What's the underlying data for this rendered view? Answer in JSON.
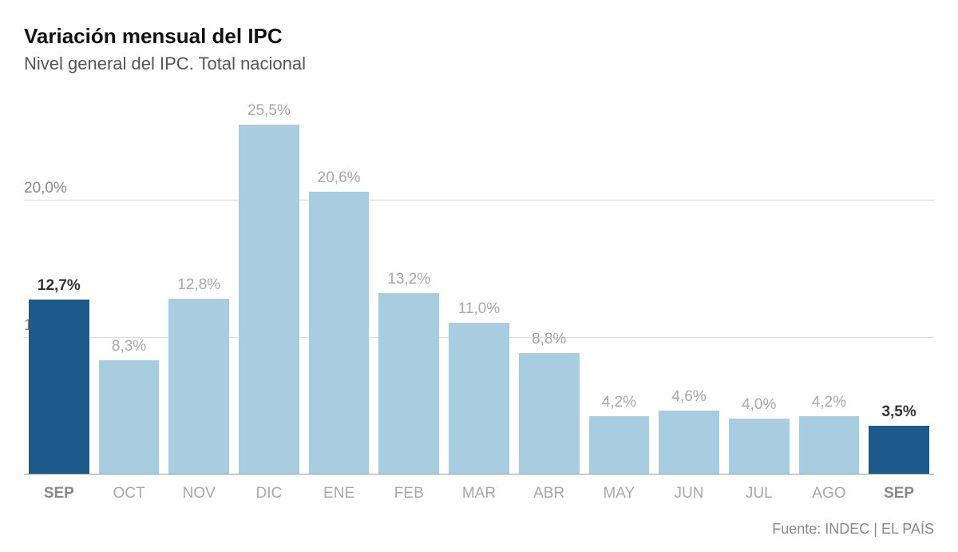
{
  "title": "Variación mensual del IPC",
  "subtitle": "Nivel general del IPC. Total nacional",
  "source": "Fuente: INDEC | EL PAÍS",
  "chart": {
    "type": "bar",
    "background_color": "#ffffff",
    "grid_color": "#dddddd",
    "baseline_color": "#999999",
    "title_fontsize": 26,
    "subtitle_fontsize": 22,
    "label_fontsize": 19,
    "ymax": 28,
    "yticks": [
      {
        "value": 10.0,
        "label": "10,0"
      },
      {
        "value": 20.0,
        "label": "20,0%"
      }
    ],
    "bar_width": 0.86,
    "colors": {
      "highlight": "#1d5a8a",
      "normal": "#a9cde0",
      "value_text_highlight": "#333333",
      "value_text_normal": "#a8a8a8",
      "xlabel_highlight": "#888888",
      "xlabel_highlight_weight": 700,
      "xlabel_normal": "#a8a8a8",
      "xlabel_normal_weight": 400
    },
    "data": [
      {
        "month": "SEP",
        "value": 12.7,
        "label": "12,7%",
        "highlight": true
      },
      {
        "month": "OCT",
        "value": 8.3,
        "label": "8,3%",
        "highlight": false
      },
      {
        "month": "NOV",
        "value": 12.8,
        "label": "12,8%",
        "highlight": false
      },
      {
        "month": "DIC",
        "value": 25.5,
        "label": "25,5%",
        "highlight": false
      },
      {
        "month": "ENE",
        "value": 20.6,
        "label": "20,6%",
        "highlight": false
      },
      {
        "month": "FEB",
        "value": 13.2,
        "label": "13,2%",
        "highlight": false
      },
      {
        "month": "MAR",
        "value": 11.0,
        "label": "11,0%",
        "highlight": false
      },
      {
        "month": "ABR",
        "value": 8.8,
        "label": "8,8%",
        "highlight": false
      },
      {
        "month": "MAY",
        "value": 4.2,
        "label": "4,2%",
        "highlight": false
      },
      {
        "month": "JUN",
        "value": 4.6,
        "label": "4,6%",
        "highlight": false
      },
      {
        "month": "JUL",
        "value": 4.0,
        "label": "4,0%",
        "highlight": false
      },
      {
        "month": "AGO",
        "value": 4.2,
        "label": "4,2%",
        "highlight": false
      },
      {
        "month": "SEP",
        "value": 3.5,
        "label": "3,5%",
        "highlight": true
      }
    ]
  }
}
